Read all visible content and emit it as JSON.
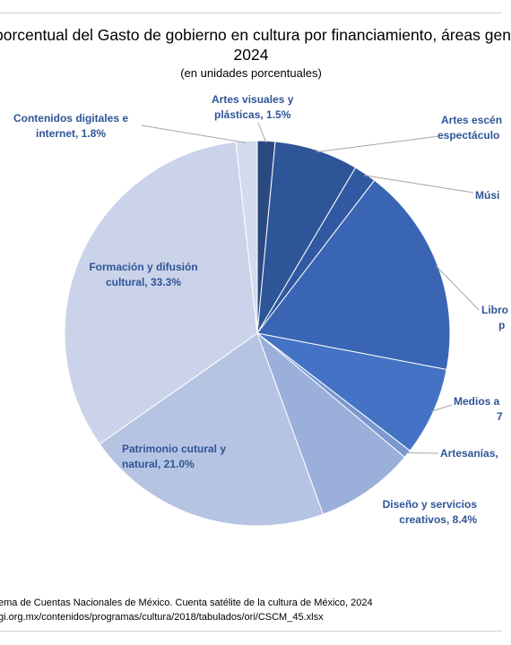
{
  "chart_data": {
    "type": "pie",
    "title_line1": "porcentual del Gasto de gobierno en cultura por financiamiento, áreas gen",
    "title_line2": "2024",
    "subtitle": "(en unidades porcentuales)",
    "slices": [
      {
        "label_lines": [
          "Artes visuales y",
          "plásticas, 1.5%"
        ],
        "value": 1.5,
        "color": "#2b4a82"
      },
      {
        "label_lines": [
          "Artes escén",
          "espectáculo"
        ],
        "value": 7.1,
        "color": "#2e5597"
      },
      {
        "label_lines": [
          "Músi"
        ],
        "value": 1.9,
        "color": "#3159a2"
      },
      {
        "label_lines": [
          "Libro",
          "p"
        ],
        "value": 17.8,
        "color": "#3a65b4"
      },
      {
        "label_lines": [
          "Medios a",
          "7"
        ],
        "value": 7.5,
        "color": "#4472c4"
      },
      {
        "label_lines": [
          "Artesanías,"
        ],
        "value": 0.7,
        "color": "#7b98d1"
      },
      {
        "label_lines": [
          "Diseño y servicios",
          "creativos, 8.4%"
        ],
        "value": 8.4,
        "color": "#9aafda"
      },
      {
        "label_lines": [
          "Patrimonio cutural y",
          "natural, 21.0%"
        ],
        "value": 21.0,
        "color": "#b6c4e3"
      },
      {
        "label_lines": [
          "Formación y difusión",
          "cultural, 33.3%"
        ],
        "value": 33.3,
        "color": "#cbd3ea"
      },
      {
        "label_lines": [
          "Contenidos digitales e",
          "internet, 1.8%"
        ],
        "value": 1.8,
        "color": "#d4dbee"
      }
    ],
    "legend": "none"
  },
  "footer": {
    "line1": "ema de Cuentas Nacionales de México. Cuenta satélite de la cultura de México, 2024",
    "line2": "gi.org.mx/contenidos/programas/cultura/2018/tabulados/ori/CSCM_45.xlsx"
  }
}
